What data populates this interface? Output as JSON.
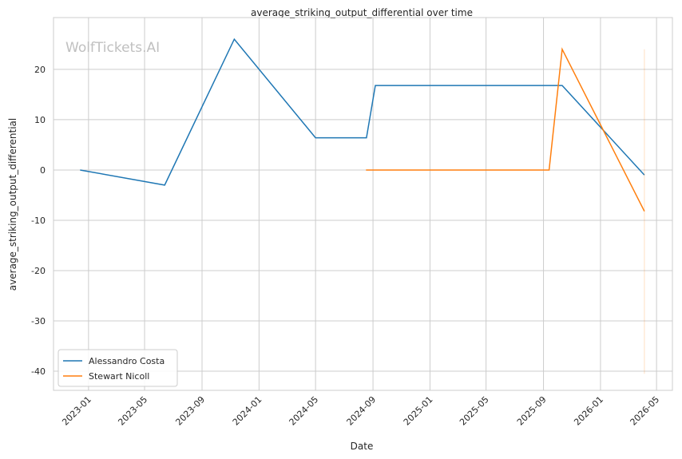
{
  "chart_data": {
    "type": "line",
    "title": "average_striking_output_differential over time",
    "xlabel": "Date",
    "ylabel": "average_striking_output_differential",
    "watermark": "WolfTickets.AI",
    "xlim": [
      "2022-10-18",
      "2026-06-04"
    ],
    "ylim": [
      -43.8,
      30.3
    ],
    "grid": true,
    "legend_position": "bottom-left",
    "x_ticks": [
      "2023-01",
      "2023-05",
      "2023-09",
      "2024-01",
      "2024-05",
      "2024-09",
      "2025-01",
      "2025-05",
      "2025-09",
      "2026-01",
      "2026-05"
    ],
    "y_ticks": [
      20,
      10,
      0,
      -10,
      -20,
      -30,
      -40
    ],
    "series": [
      {
        "name": "Alessandro Costa",
        "color": "#1f77b4",
        "x": [
          "2022-12-14",
          "2023-06-13",
          "2023-11-09",
          "2024-05-01",
          "2024-08-18",
          "2024-09-06",
          "2025-10-11",
          "2026-04-05"
        ],
        "y": [
          0,
          -3,
          26,
          6.4,
          6.4,
          16.8,
          16.8,
          -1.0
        ]
      },
      {
        "name": "Stewart Nicoll",
        "color": "#ff7f0e",
        "x": [
          "2024-08-17",
          "2025-09-13",
          "2025-10-11",
          "2026-04-05"
        ],
        "y": [
          0,
          0,
          24,
          -8.2
        ],
        "band": {
          "x": "2026-04-05",
          "y": [
            -40.5,
            24
          ]
        }
      }
    ]
  }
}
